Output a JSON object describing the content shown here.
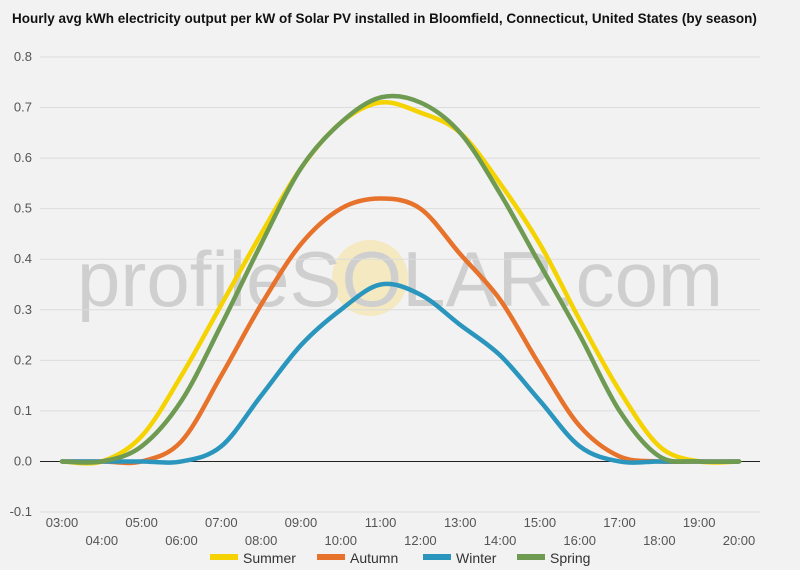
{
  "chart_data": {
    "type": "line",
    "title": "Hourly avg kWh electricity output per kW of Solar PV installed in Bloomfield, Connecticut, United States (by season)",
    "x": [
      "03:00",
      "04:00",
      "05:00",
      "06:00",
      "07:00",
      "08:00",
      "09:00",
      "10:00",
      "11:00",
      "12:00",
      "13:00",
      "14:00",
      "15:00",
      "16:00",
      "17:00",
      "18:00",
      "19:00",
      "20:00"
    ],
    "ylim": [
      -0.1,
      0.8
    ],
    "yticks": [
      -0.1,
      0.0,
      0.1,
      0.2,
      0.3,
      0.4,
      0.5,
      0.6,
      0.7,
      0.8
    ],
    "grid": true,
    "legend": "bottom",
    "series": [
      {
        "name": "Summer",
        "color": "#f5d300",
        "values": [
          0.0,
          0.0,
          0.05,
          0.17,
          0.31,
          0.45,
          0.58,
          0.67,
          0.71,
          0.69,
          0.65,
          0.55,
          0.43,
          0.28,
          0.14,
          0.03,
          0.0,
          0.0
        ]
      },
      {
        "name": "Autumn",
        "color": "#e6722b",
        "values": [
          0.0,
          0.0,
          0.0,
          0.04,
          0.17,
          0.31,
          0.43,
          0.5,
          0.52,
          0.5,
          0.41,
          0.32,
          0.19,
          0.07,
          0.01,
          0.0,
          0.0,
          0.0
        ]
      },
      {
        "name": "Winter",
        "color": "#2b96bd",
        "values": [
          0.0,
          0.0,
          0.0,
          0.0,
          0.03,
          0.13,
          0.23,
          0.3,
          0.35,
          0.33,
          0.27,
          0.21,
          0.12,
          0.03,
          0.0,
          0.0,
          0.0,
          0.0
        ]
      },
      {
        "name": "Spring",
        "color": "#6e9a52",
        "values": [
          0.0,
          0.0,
          0.03,
          0.12,
          0.27,
          0.43,
          0.58,
          0.67,
          0.72,
          0.71,
          0.65,
          0.53,
          0.39,
          0.25,
          0.1,
          0.01,
          0.0,
          0.0
        ]
      }
    ]
  },
  "watermark": {
    "text": "profileSOLAR.com"
  }
}
